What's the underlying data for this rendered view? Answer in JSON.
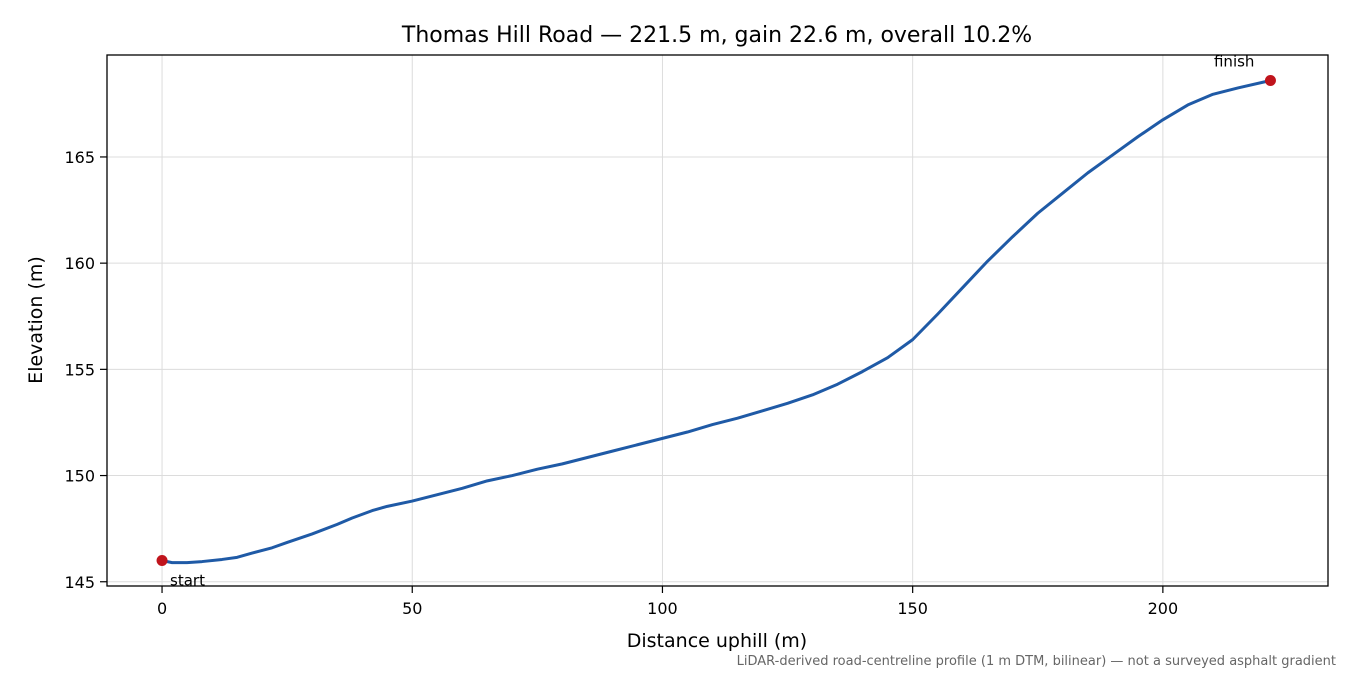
{
  "chart_data": {
    "type": "line",
    "title": "Thomas Hill Road — 221.5 m, gain 22.6 m, overall 10.2%",
    "xlabel": "Distance uphill (m)",
    "ylabel": "Elevation (m)",
    "xlim": [
      -11,
      233
    ],
    "ylim": [
      144.8,
      169.8
    ],
    "xticks": [
      0,
      50,
      100,
      150,
      200
    ],
    "yticks": [
      145,
      150,
      155,
      160,
      165
    ],
    "grid": true,
    "footnote": "LiDAR-derived road-centreline profile (1 m DTM, bilinear) — not a surveyed asphalt gradient",
    "series": [
      {
        "color": "#1f5aa6",
        "x": [
          0,
          2,
          5,
          8,
          12,
          15,
          18,
          22,
          25,
          30,
          35,
          38,
          42,
          45,
          50,
          55,
          60,
          65,
          70,
          75,
          80,
          85,
          90,
          95,
          100,
          105,
          110,
          115,
          120,
          125,
          130,
          135,
          140,
          145,
          150,
          155,
          160,
          165,
          170,
          175,
          180,
          185,
          190,
          195,
          200,
          205,
          210,
          215,
          221.5
        ],
        "y": [
          146.0,
          145.9,
          145.9,
          145.95,
          146.05,
          146.15,
          146.35,
          146.6,
          146.85,
          147.25,
          147.7,
          148.0,
          148.35,
          148.55,
          148.8,
          149.1,
          149.4,
          149.75,
          150.0,
          150.3,
          150.55,
          150.85,
          151.15,
          151.45,
          151.75,
          152.05,
          152.4,
          152.7,
          153.05,
          153.4,
          153.8,
          154.3,
          154.9,
          155.55,
          156.4,
          157.6,
          158.85,
          160.1,
          161.25,
          162.35,
          163.3,
          164.25,
          165.1,
          165.95,
          166.75,
          167.45,
          167.95,
          168.25,
          168.6
        ]
      }
    ],
    "markers": [
      {
        "x": 0,
        "y": 146.0,
        "label": "start",
        "color": "#c0141c"
      },
      {
        "x": 221.5,
        "y": 168.6,
        "label": "finish",
        "color": "#c0141c"
      }
    ]
  }
}
